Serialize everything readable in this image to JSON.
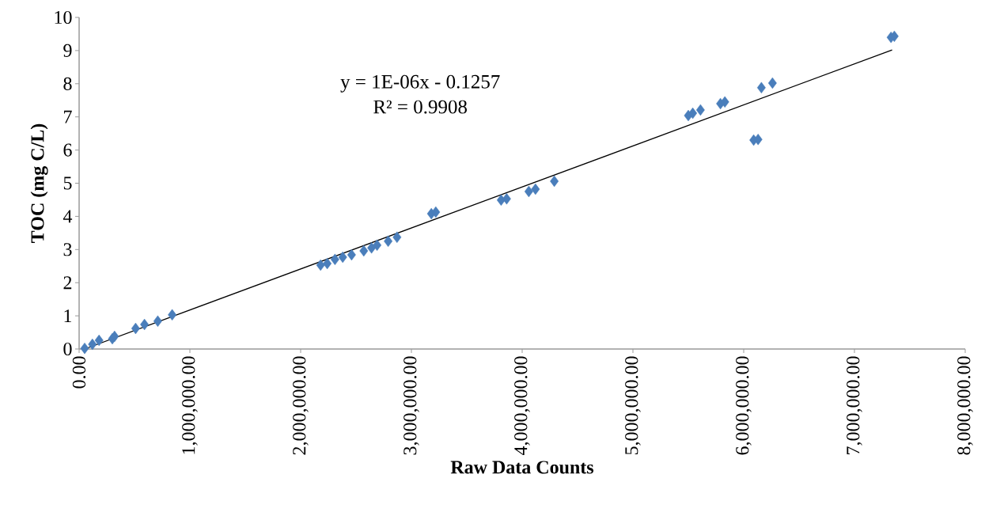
{
  "chart_data": {
    "type": "scatter",
    "xlabel": "Raw Data Counts",
    "ylabel": "TOC (mg C/L)",
    "annotations": [
      "y = 1E-06x - 0.1257",
      "R² = 0.9908"
    ],
    "xlim": [
      0,
      8000000
    ],
    "ylim": [
      0,
      10
    ],
    "xticks": [
      {
        "value": 0,
        "label": "0.00"
      },
      {
        "value": 1000000,
        "label": "1,000,000.00"
      },
      {
        "value": 2000000,
        "label": "2,000,000.00"
      },
      {
        "value": 3000000,
        "label": "3,000,000.00"
      },
      {
        "value": 4000000,
        "label": "4,000,000.00"
      },
      {
        "value": 5000000,
        "label": "5,000,000.00"
      },
      {
        "value": 6000000,
        "label": "6,000,000.00"
      },
      {
        "value": 7000000,
        "label": "7,000,000.00"
      },
      {
        "value": 8000000,
        "label": "8,000,000.00"
      }
    ],
    "yticks": [
      0,
      1,
      2,
      3,
      4,
      5,
      6,
      7,
      8,
      9,
      10
    ],
    "grid": false,
    "marker": "diamond",
    "series": [
      {
        "color": "#4a7ebb",
        "x": [
          50000,
          120000,
          180000,
          300000,
          320000,
          510000,
          590000,
          710000,
          840000,
          2180000,
          2240000,
          2310000,
          2380000,
          2460000,
          2570000,
          2640000,
          2690000,
          2790000,
          2870000,
          3180000,
          3220000,
          3810000,
          3860000,
          4060000,
          4120000,
          4290000,
          5500000,
          5540000,
          5610000,
          5790000,
          5830000,
          6090000,
          6130000,
          6160000,
          6260000,
          7330000,
          7360000
        ],
        "values": [
          0.02,
          0.14,
          0.26,
          0.31,
          0.38,
          0.62,
          0.74,
          0.84,
          1.03,
          2.53,
          2.58,
          2.7,
          2.77,
          2.84,
          2.96,
          3.05,
          3.13,
          3.25,
          3.37,
          4.08,
          4.13,
          4.49,
          4.53,
          4.75,
          4.82,
          5.06,
          7.04,
          7.11,
          7.21,
          7.4,
          7.45,
          6.3,
          6.32,
          7.88,
          8.02,
          9.4,
          9.43
        ]
      },
      {
        "type": "line",
        "color": "#000000",
        "marker": "none",
        "x": [
          50000,
          7340000
        ],
        "values": [
          0.0,
          9.02
        ]
      }
    ]
  }
}
